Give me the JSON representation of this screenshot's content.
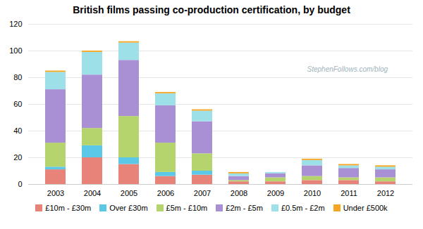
{
  "chart_data": {
    "type": "bar",
    "title": "British films passing co-production certification, by budget",
    "categories": [
      "2003",
      "2004",
      "2005",
      "2006",
      "2007",
      "2008",
      "2009",
      "2010",
      "2011",
      "2012"
    ],
    "series": [
      {
        "name": "£10m - £30m",
        "color": "#e8837a",
        "values": [
          11,
          20,
          15,
          6,
          7,
          2,
          2,
          3,
          3,
          2
        ]
      },
      {
        "name": "Over £30m",
        "color": "#5bc8e8",
        "values": [
          2,
          9,
          5,
          3,
          3,
          0,
          0,
          0,
          0,
          0
        ]
      },
      {
        "name": "£5m - £10m",
        "color": "#b5d46e",
        "values": [
          18,
          13,
          31,
          22,
          13,
          1,
          3,
          3,
          2,
          3
        ]
      },
      {
        "name": "£2m - £5m",
        "color": "#a98fd4",
        "values": [
          40,
          40,
          42,
          28,
          24,
          3,
          3,
          8,
          7,
          6
        ]
      },
      {
        "name": "£0.5m - £2m",
        "color": "#9de0e8",
        "values": [
          13,
          17,
          13,
          9,
          8,
          2,
          1,
          4,
          2,
          2
        ]
      },
      {
        "name": "Under £500k",
        "color": "#f5a623",
        "values": [
          1,
          1,
          1,
          1,
          1,
          1,
          0,
          1,
          1,
          1
        ]
      }
    ],
    "stacked": true,
    "ylim": [
      0,
      120
    ],
    "yticks": [
      0,
      20,
      40,
      60,
      80,
      100,
      120
    ],
    "grid": true,
    "legend": "bottom",
    "annotations": [
      "StephenFollows.com/blog"
    ]
  }
}
